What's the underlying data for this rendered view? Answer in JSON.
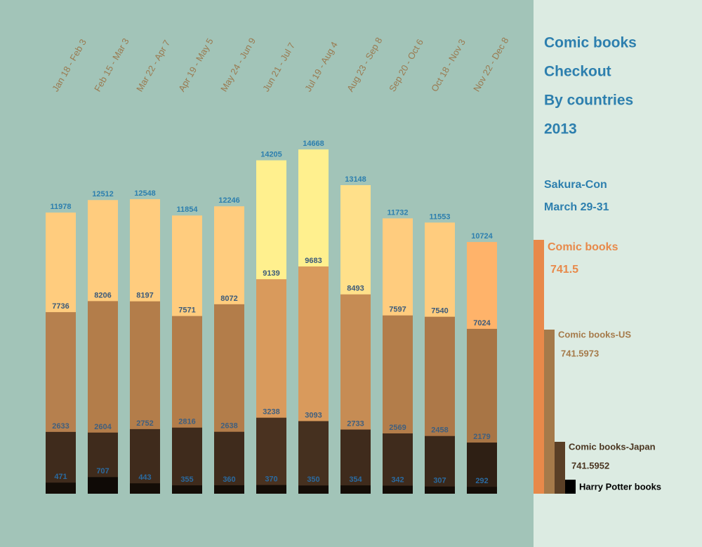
{
  "chart_data": {
    "type": "bar",
    "overlap": true,
    "title": [
      "Comic books",
      "Checkout",
      "By countries",
      "2013"
    ],
    "subtitle": [
      "Sakura-Con",
      "March 29-31"
    ],
    "categories": [
      "Jan 18 - Feb 3",
      "Feb 15 - Mar 3",
      "Mar 22 - Apr 7",
      "Apr 19 - May 5",
      "May 24 - Jun 9",
      "Jun 21 - Jul 7",
      "Jul 19 - Aug 4",
      "Aug 23 - Sep 8",
      "Sep 20 - Oct 6",
      "Oct 18 - Nov 3",
      "Nov 22 - Dec 8"
    ],
    "ylim": [
      0,
      15000
    ],
    "series": [
      {
        "name": "Comic books",
        "call_number": "741.5",
        "color": "#e8894a",
        "label_color": "#2d7fae",
        "colors": [
          "#ffcc7e",
          "#ffcc7e",
          "#ffcc7e",
          "#ffcc7e",
          "#ffcc7e",
          "#fff08e",
          "#fff08e",
          "#ffe08a",
          "#ffcc7e",
          "#ffcc7e",
          "#ffb36a"
        ],
        "values": [
          11978,
          12512,
          12548,
          11854,
          12246,
          14205,
          14668,
          13148,
          11732,
          11553,
          10724
        ]
      },
      {
        "name": "Comic books-US",
        "call_number": "741.5973",
        "color": "#a57a4a",
        "label_color": "#3b5a7a",
        "colors": [
          "#b6804e",
          "#b37d4a",
          "#b37d4a",
          "#b37d4a",
          "#b37d4a",
          "#d99a5c",
          "#d99a5c",
          "#c68c54",
          "#b37d4a",
          "#ad7848",
          "#a87545"
        ],
        "values": [
          7736,
          8206,
          8197,
          7571,
          8072,
          9139,
          9683,
          8493,
          7597,
          7540,
          7024
        ]
      },
      {
        "name": "Comic books-Japan",
        "call_number": "741.5952",
        "color": "#5a3f26",
        "label_color": "#3f5f7f",
        "colors": [
          "#3f2b1c",
          "#3f2b1c",
          "#3f2b1c",
          "#3f2b1c",
          "#3f2b1c",
          "#4a3220",
          "#45301f",
          "#3f2b1c",
          "#3f2b1c",
          "#3a281a",
          "#2e1f14"
        ],
        "values": [
          2633,
          2604,
          2752,
          2816,
          2638,
          3238,
          3093,
          2733,
          2569,
          2458,
          2179
        ]
      },
      {
        "name": "Harry Potter books",
        "color": "#000000",
        "label_color": "#2a6aa0",
        "colors": [
          "#140d07",
          "#0f0a06",
          "#140d07",
          "#140d07",
          "#140d07",
          "#140d07",
          "#140d07",
          "#140d07",
          "#140d07",
          "#140d07",
          "#140d07"
        ],
        "values": [
          471,
          707,
          443,
          355,
          360,
          370,
          350,
          354,
          342,
          307,
          292
        ]
      }
    ]
  }
}
